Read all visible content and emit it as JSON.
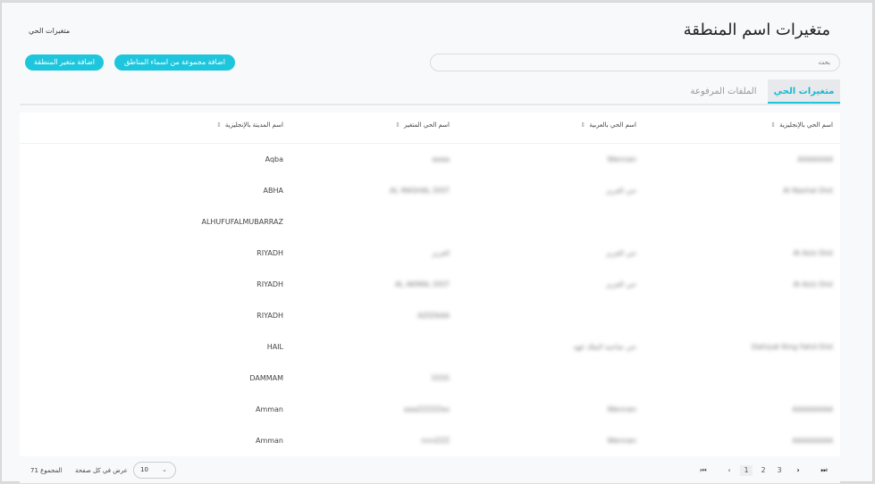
{
  "header": {
    "title": "متغيرات اسم المنطقة",
    "breadcrumb": "متغيرات الحي"
  },
  "search": {
    "placeholder": "بحث"
  },
  "buttons": {
    "add_group": "اضافة مجموعة من اسماء المناطق",
    "add_variable": "اضافة متغير المنطقة"
  },
  "tabs": [
    {
      "label": "متغيرات الحي",
      "active": true
    },
    {
      "label": "الملفات المرفوعة",
      "active": false
    }
  ],
  "colors": {
    "accent": "#1ec6dd"
  },
  "table": {
    "columns": [
      "اسم الحي بالإنجليزية",
      "اسم الحي بالعربية",
      "اسم الحي المتغير",
      "اسم المدينة بالإنجليزية"
    ],
    "rows": [
      [
        "AAAAAAA",
        "Wennan",
        "aaaa",
        "Aqba"
      ],
      [
        "Al Nashal Dist",
        "حي العزيز",
        "AL MASHAL DIST",
        "ABHA"
      ],
      [
        "",
        "",
        "",
        "ALHUFUFALMUBARRAZ"
      ],
      [
        "Al Aziz Dist",
        "حي العزيز",
        "العزيز",
        "RIYADH"
      ],
      [
        "Al Aziz Dist",
        "حي العزيز",
        "AL AKMAL DIST",
        "RIYADH"
      ],
      [
        "",
        "",
        "AZIZAAA",
        "RIYADH"
      ],
      [
        "Dahiyat King Fahd Dist",
        "حي ضاحية الملك فهد",
        "",
        "HAIL"
      ],
      [
        "",
        "",
        "5555",
        "DAMMAM"
      ],
      [
        "AAAAAAAA",
        "Wennan",
        "aaaZZZZZes",
        "Amman"
      ],
      [
        "AAAAAAAA",
        "Wennan",
        "nnnZZZ",
        "Amman"
      ]
    ]
  },
  "footer": {
    "total": "المجموع 71",
    "per_page_label": "عرض في كل صفحة",
    "per_page": "10",
    "pages": [
      "1",
      "2",
      "3"
    ],
    "current_page": "1"
  }
}
